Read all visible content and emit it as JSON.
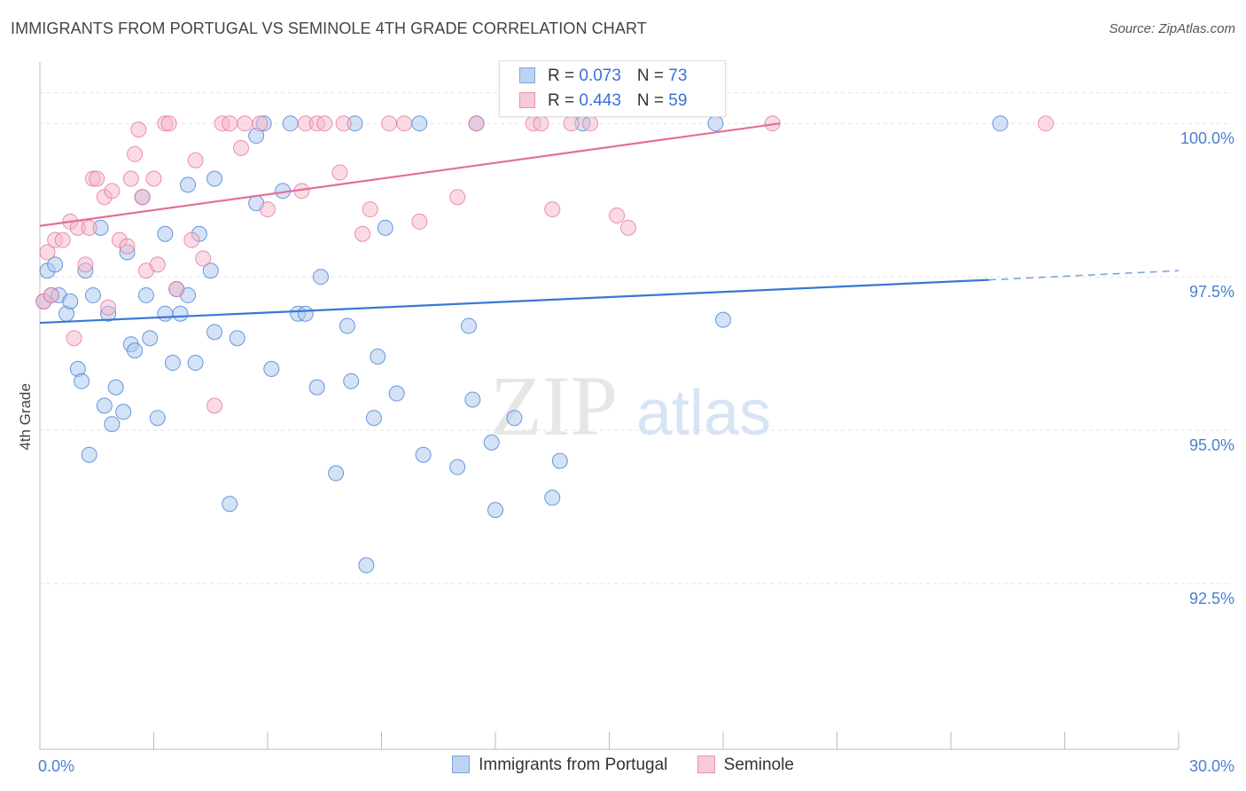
{
  "title": "IMMIGRANTS FROM PORTUGAL VS SEMINOLE 4TH GRADE CORRELATION CHART",
  "source": "Source: ZipAtlas.com",
  "watermark": {
    "zip": "ZIP",
    "atlas": "atlas"
  },
  "legend_stats": [
    {
      "r_label": "R = ",
      "r_value": "0.073",
      "n_label": "N = ",
      "n_value": "73"
    },
    {
      "r_label": "R = ",
      "r_value": "0.443",
      "n_label": "N = ",
      "n_value": "59"
    }
  ],
  "chart_data": {
    "type": "scatter",
    "title": "IMMIGRANTS FROM PORTUGAL VS SEMINOLE 4TH GRADE CORRELATION CHART",
    "xlabel": "",
    "ylabel": "4th Grade",
    "xlim": [
      0,
      30
    ],
    "ylim": [
      89.8,
      101.0
    ],
    "x_tick_labels": [
      "0.0%",
      "30.0%"
    ],
    "y_ticks": [
      92.5,
      95.0,
      97.5,
      100.0
    ],
    "y_tick_labels": [
      "92.5%",
      "95.0%",
      "97.5%",
      "100.0%"
    ],
    "grid": true,
    "legend_position": "bottom",
    "colors": {
      "blue": "#4a7fd1",
      "blue_fill": "#a9c6ee",
      "pink": "#e36f97",
      "pink_fill": "#f5b8cc"
    },
    "series": [
      {
        "name": "Immigrants from Portugal",
        "color": "#3b78d4",
        "fill": "#a9c6ee",
        "points": [
          [
            0.1,
            97.1
          ],
          [
            0.2,
            97.6
          ],
          [
            0.3,
            97.2
          ],
          [
            0.4,
            97.7
          ],
          [
            0.5,
            97.2
          ],
          [
            0.7,
            96.9
          ],
          [
            0.8,
            97.1
          ],
          [
            1.0,
            96.0
          ],
          [
            1.1,
            95.8
          ],
          [
            1.2,
            97.6
          ],
          [
            1.3,
            94.6
          ],
          [
            1.4,
            97.2
          ],
          [
            1.6,
            98.3
          ],
          [
            1.7,
            95.4
          ],
          [
            1.8,
            96.9
          ],
          [
            1.9,
            95.1
          ],
          [
            2.0,
            95.7
          ],
          [
            2.2,
            95.3
          ],
          [
            2.3,
            97.9
          ],
          [
            2.4,
            96.4
          ],
          [
            2.5,
            96.3
          ],
          [
            2.7,
            98.8
          ],
          [
            2.8,
            97.2
          ],
          [
            2.9,
            96.5
          ],
          [
            3.1,
            95.2
          ],
          [
            3.3,
            96.9
          ],
          [
            3.3,
            98.2
          ],
          [
            3.5,
            96.1
          ],
          [
            3.6,
            97.3
          ],
          [
            3.7,
            96.9
          ],
          [
            3.9,
            97.2
          ],
          [
            3.9,
            99.0
          ],
          [
            4.1,
            96.1
          ],
          [
            4.2,
            98.2
          ],
          [
            4.5,
            97.6
          ],
          [
            4.6,
            96.6
          ],
          [
            4.6,
            99.1
          ],
          [
            5.0,
            93.8
          ],
          [
            5.2,
            96.5
          ],
          [
            5.7,
            99.8
          ],
          [
            5.7,
            98.7
          ],
          [
            5.9,
            100.0
          ],
          [
            6.1,
            96.0
          ],
          [
            6.4,
            98.9
          ],
          [
            6.6,
            100.0
          ],
          [
            6.8,
            96.9
          ],
          [
            7.0,
            96.9
          ],
          [
            7.3,
            95.7
          ],
          [
            7.4,
            97.5
          ],
          [
            7.8,
            94.3
          ],
          [
            8.1,
            96.7
          ],
          [
            8.2,
            95.8
          ],
          [
            8.3,
            100.0
          ],
          [
            8.6,
            92.8
          ],
          [
            8.8,
            95.2
          ],
          [
            8.9,
            96.2
          ],
          [
            9.1,
            98.3
          ],
          [
            9.4,
            95.6
          ],
          [
            10.0,
            100.0
          ],
          [
            10.1,
            94.6
          ],
          [
            11.0,
            94.4
          ],
          [
            11.3,
            96.7
          ],
          [
            11.4,
            95.5
          ],
          [
            11.5,
            100.0
          ],
          [
            11.9,
            94.8
          ],
          [
            12.0,
            93.7
          ],
          [
            12.5,
            95.2
          ],
          [
            13.5,
            93.9
          ],
          [
            13.7,
            94.5
          ],
          [
            14.3,
            100.0
          ],
          [
            17.8,
            100.0
          ],
          [
            18.0,
            96.8
          ],
          [
            25.3,
            100.0
          ]
        ]
      },
      {
        "name": "Seminole",
        "color": "#e36f97",
        "fill": "#f5b8cc",
        "points": [
          [
            0.1,
            97.1
          ],
          [
            0.2,
            97.9
          ],
          [
            0.3,
            97.2
          ],
          [
            0.4,
            98.1
          ],
          [
            0.6,
            98.1
          ],
          [
            0.8,
            98.4
          ],
          [
            0.9,
            96.5
          ],
          [
            1.0,
            98.3
          ],
          [
            1.2,
            97.7
          ],
          [
            1.3,
            98.3
          ],
          [
            1.4,
            99.1
          ],
          [
            1.5,
            99.1
          ],
          [
            1.7,
            98.8
          ],
          [
            1.8,
            97.0
          ],
          [
            1.9,
            98.9
          ],
          [
            2.1,
            98.1
          ],
          [
            2.3,
            98.0
          ],
          [
            2.4,
            99.1
          ],
          [
            2.5,
            99.5
          ],
          [
            2.6,
            99.9
          ],
          [
            2.7,
            98.8
          ],
          [
            2.8,
            97.6
          ],
          [
            3.0,
            99.1
          ],
          [
            3.1,
            97.7
          ],
          [
            3.3,
            100.0
          ],
          [
            3.4,
            100.0
          ],
          [
            3.6,
            97.3
          ],
          [
            4.0,
            98.1
          ],
          [
            4.1,
            99.4
          ],
          [
            4.3,
            97.8
          ],
          [
            4.6,
            95.4
          ],
          [
            4.8,
            100.0
          ],
          [
            5.0,
            100.0
          ],
          [
            5.3,
            99.6
          ],
          [
            5.4,
            100.0
          ],
          [
            5.8,
            100.0
          ],
          [
            6.0,
            98.6
          ],
          [
            6.9,
            98.9
          ],
          [
            7.0,
            100.0
          ],
          [
            7.3,
            100.0
          ],
          [
            7.5,
            100.0
          ],
          [
            7.9,
            99.2
          ],
          [
            8.0,
            100.0
          ],
          [
            8.5,
            98.2
          ],
          [
            8.7,
            98.6
          ],
          [
            9.2,
            100.0
          ],
          [
            9.6,
            100.0
          ],
          [
            10.0,
            98.4
          ],
          [
            11.0,
            98.8
          ],
          [
            11.5,
            100.0
          ],
          [
            13.0,
            100.0
          ],
          [
            13.2,
            100.0
          ],
          [
            13.5,
            98.6
          ],
          [
            14.0,
            100.0
          ],
          [
            14.5,
            100.0
          ],
          [
            15.2,
            98.5
          ],
          [
            15.5,
            98.3
          ],
          [
            19.3,
            100.0
          ],
          [
            26.5,
            100.0
          ]
        ]
      }
    ],
    "trend_lines": [
      {
        "series": "Immigrants from Portugal",
        "x_start": 0,
        "y_start": 96.75,
        "x_end": 25.0,
        "y_end": 97.45,
        "dashed_x_end": 30,
        "dashed_y_end": 97.6
      },
      {
        "series": "Seminole",
        "x_start": 0,
        "y_start": 98.33,
        "x_end": 19.5,
        "y_end": 100.0
      }
    ]
  }
}
